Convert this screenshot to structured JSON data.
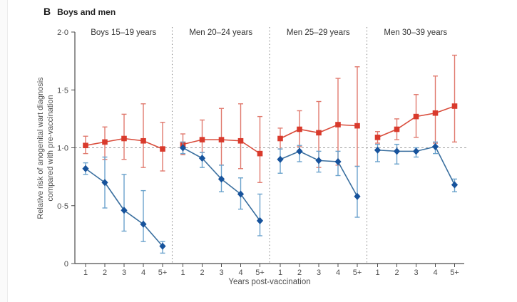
{
  "figure": {
    "panel_letter": "B",
    "title": "Boys and men"
  },
  "chart_data": {
    "type": "line",
    "title": "B: Boys and men",
    "xlabel": "Years post-vaccination",
    "ylabel": "Relative risk of anogenital wart diagnosis compared with pre-vaccination",
    "ylabel_lines": [
      "Relative risk of anogenital wart diagnosis",
      "compared with pre-vaccination"
    ],
    "ylim": [
      0,
      2
    ],
    "y_ticks": [
      0,
      0.5,
      1.0,
      1.5,
      2.0
    ],
    "y_tick_labels": [
      "0",
      "0·5",
      "1·0",
      "1·5",
      "2·0"
    ],
    "x_tick_labels": [
      "1",
      "2",
      "3",
      "4",
      "5+"
    ],
    "reference_line": 1.0,
    "grid": false,
    "legend": "none",
    "series_style": {
      "red": {
        "marker": "square",
        "color": "#d93a2c",
        "line_color": "#d94b3a",
        "ci_color": "#e07a6e"
      },
      "blue": {
        "marker": "diamond",
        "color": "#17539c",
        "line_color": "#3a6f9f",
        "ci_color": "#6ba3cc"
      }
    },
    "panels": [
      {
        "label": "Boys 15–19 years",
        "x": [
          "1",
          "2",
          "3",
          "4",
          "5+"
        ],
        "series": [
          {
            "key": "red",
            "name": "red squares",
            "values": [
              1.02,
              1.05,
              1.08,
              1.06,
              0.99
            ],
            "ci_low": [
              0.95,
              0.9,
              0.9,
              0.83,
              0.8
            ],
            "ci_high": [
              1.1,
              1.18,
              1.29,
              1.38,
              1.22
            ]
          },
          {
            "key": "blue",
            "name": "blue diamonds",
            "values": [
              0.82,
              0.7,
              0.46,
              0.34,
              0.15
            ],
            "ci_low": [
              0.77,
              0.48,
              0.28,
              0.19,
              0.09
            ],
            "ci_high": [
              0.87,
              0.92,
              0.77,
              0.63,
              0.19
            ]
          }
        ]
      },
      {
        "label": "Men 20–24 years",
        "x": [
          "1",
          "2",
          "3",
          "4",
          "5+"
        ],
        "series": [
          {
            "key": "red",
            "name": "red squares",
            "values": [
              1.03,
              1.07,
              1.07,
              1.06,
              0.95
            ],
            "ci_low": [
              0.94,
              0.96,
              0.85,
              0.82,
              0.7
            ],
            "ci_high": [
              1.12,
              1.24,
              1.34,
              1.38,
              1.27
            ]
          },
          {
            "key": "blue",
            "name": "blue diamonds",
            "values": [
              1.0,
              0.91,
              0.73,
              0.6,
              0.37
            ],
            "ci_low": [
              0.95,
              0.83,
              0.62,
              0.47,
              0.24
            ],
            "ci_high": [
              1.05,
              0.96,
              0.85,
              0.74,
              0.6
            ]
          }
        ]
      },
      {
        "label": "Men 25–29 years",
        "x": [
          "1",
          "2",
          "3",
          "4",
          "5+"
        ],
        "series": [
          {
            "key": "red",
            "name": "red squares",
            "values": [
              1.08,
              1.16,
              1.13,
              1.2,
              1.19
            ],
            "ci_low": [
              0.99,
              1.01,
              0.83,
              0.85,
              0.84
            ],
            "ci_high": [
              1.17,
              1.32,
              1.4,
              1.6,
              1.7
            ]
          },
          {
            "key": "blue",
            "name": "blue diamonds",
            "values": [
              0.9,
              0.97,
              0.89,
              0.88,
              0.58
            ],
            "ci_low": [
              0.78,
              0.88,
              0.79,
              0.76,
              0.4
            ],
            "ci_high": [
              0.99,
              1.02,
              0.97,
              0.97,
              0.84
            ]
          }
        ]
      },
      {
        "label": "Men 30–39 years",
        "x": [
          "1",
          "2",
          "3",
          "4",
          "5+"
        ],
        "series": [
          {
            "key": "red",
            "name": "red squares",
            "values": [
              1.09,
              1.16,
              1.27,
              1.3,
              1.36
            ],
            "ci_low": [
              1.04,
              1.07,
              1.09,
              1.04,
              1.05
            ],
            "ci_high": [
              1.14,
              1.25,
              1.46,
              1.62,
              1.8
            ]
          },
          {
            "key": "blue",
            "name": "blue diamonds",
            "values": [
              0.98,
              0.97,
              0.97,
              1.01,
              0.68
            ],
            "ci_low": [
              0.88,
              0.86,
              0.92,
              0.95,
              0.62
            ],
            "ci_high": [
              1.03,
              1.03,
              1.0,
              1.05,
              0.73
            ]
          }
        ]
      }
    ]
  }
}
